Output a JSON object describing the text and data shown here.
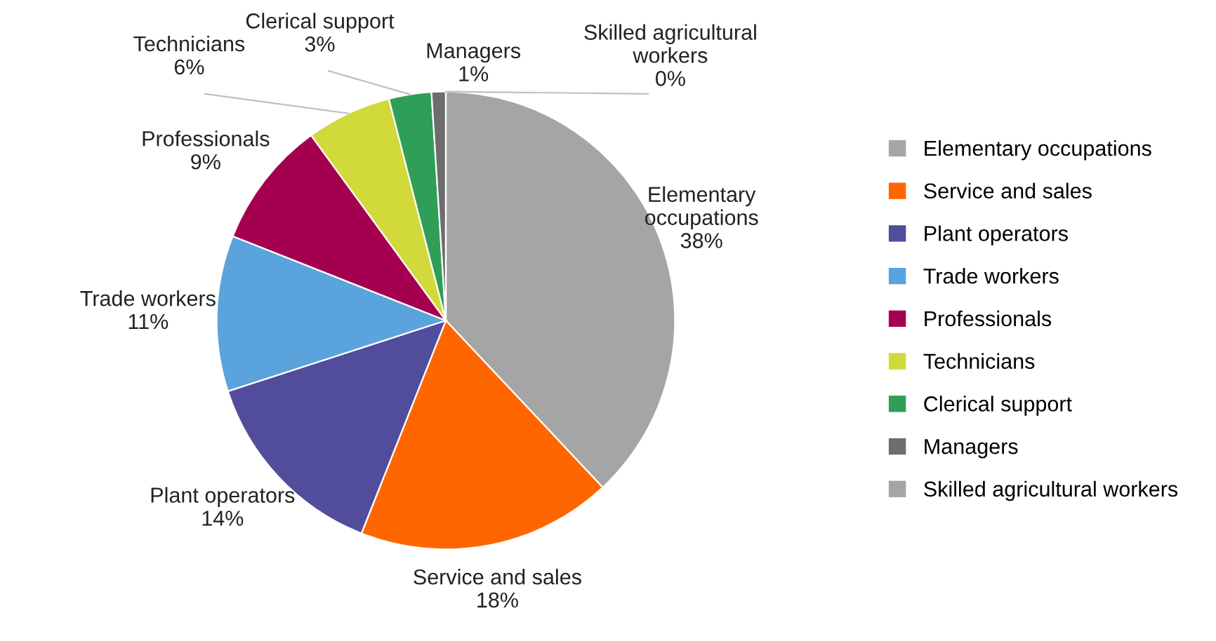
{
  "chart_data": {
    "type": "pie",
    "categories": [
      "Elementary occupations",
      "Service and sales",
      "Plant operators",
      "Trade workers",
      "Professionals",
      "Technicians",
      "Clerical support",
      "Managers",
      "Skilled agricultural workers"
    ],
    "values": [
      38,
      18,
      14,
      11,
      9,
      6,
      3,
      1,
      0
    ],
    "value_labels": [
      "38%",
      "18%",
      "14%",
      "11%",
      "9%",
      "6%",
      "3%",
      "1%",
      "0%"
    ],
    "colors": [
      "#a5a5a5",
      "#ff6600",
      "#524c9c",
      "#5ba3dc",
      "#a50050",
      "#d2d93a",
      "#2f9e57",
      "#6d6d6d",
      "#a5a5a5"
    ],
    "legend": "right"
  }
}
